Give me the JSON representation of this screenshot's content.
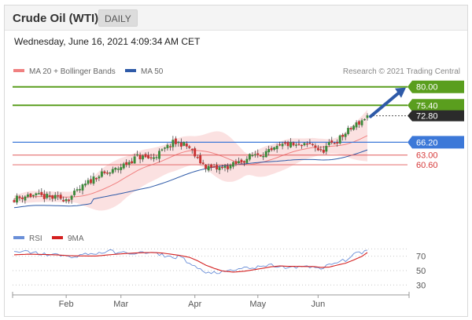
{
  "header": {
    "title": "Crude Oil (WTI)",
    "timeframe_button": "DAILY",
    "timestamp": "Wednesday, June 16, 2021 4:09:34 AM CET"
  },
  "legend": {
    "ma20": "MA 20 + Bollinger Bands",
    "ma50": "MA 50",
    "credit": "Research © 2021 Trading Central"
  },
  "rsi_legend": {
    "rsi": "RSI",
    "ma": "9MA"
  },
  "colors": {
    "bull": "#3a8a3a",
    "bear": "#c83232",
    "ma20": "#f08080",
    "band_fill": "#fadada",
    "ma50": "#2e5aa8",
    "resistance": "#5a9e1e",
    "support": "#e05a5a",
    "pivot": "#3c78d8",
    "current": "#2b2b2b",
    "arrow": "#2e5aa8",
    "rsi": "#6a8fd8",
    "rsi_ma": "#d42020",
    "grid": "#cfcfcf"
  },
  "chart_data": [
    {
      "type": "candlestick",
      "title": "Crude Oil (WTI)",
      "timeframe": "DAILY",
      "x_tick_labels": [
        "Feb",
        "Mar",
        "Apr",
        "May",
        "Jun"
      ],
      "y_range": [
        44.5,
        81.5
      ],
      "grid": false,
      "legend_position": "top-left",
      "levels": [
        {
          "name": "resistance",
          "value": 80.0,
          "label": "80.00",
          "style": "resistance"
        },
        {
          "name": "resistance",
          "value": 75.4,
          "label": "75.40",
          "style": "resistance"
        },
        {
          "name": "last",
          "value": 72.8,
          "label": "72.80",
          "style": "current"
        },
        {
          "name": "pivot",
          "value": 66.2,
          "label": "66.20",
          "style": "pivot"
        },
        {
          "name": "support",
          "value": 63.0,
          "label": "63.00",
          "style": "support"
        },
        {
          "name": "support",
          "value": 60.6,
          "label": "60.60",
          "style": "support"
        }
      ],
      "target_arrow": {
        "from": 72.8,
        "to": 80.0
      },
      "anchors": [
        [
          0,
          52.1
        ],
        [
          5,
          53.0
        ],
        [
          10,
          52.7
        ],
        [
          15,
          52.3
        ],
        [
          20,
          52.2
        ],
        [
          25,
          55.0
        ],
        [
          30,
          57.8
        ],
        [
          35,
          58.6
        ],
        [
          40,
          60.5
        ],
        [
          45,
          62.6
        ],
        [
          50,
          62.2
        ],
        [
          54,
          63.9
        ],
        [
          58,
          66.0
        ],
        [
          61,
          65.9
        ],
        [
          64,
          64.8
        ],
        [
          67,
          61.9
        ],
        [
          70,
          60.2
        ],
        [
          73,
          59.5
        ],
        [
          76,
          59.8
        ],
        [
          80,
          60.5
        ],
        [
          84,
          61.8
        ],
        [
          88,
          63.3
        ],
        [
          91,
          63.5
        ],
        [
          94,
          63.8
        ],
        [
          97,
          65.1
        ],
        [
          100,
          65.7
        ],
        [
          103,
          65.2
        ],
        [
          106,
          65.3
        ],
        [
          109,
          65.8
        ],
        [
          112,
          63.7
        ],
        [
          115,
          65.5
        ],
        [
          118,
          66.6
        ],
        [
          121,
          68.4
        ],
        [
          124,
          70.2
        ],
        [
          127,
          71.6
        ],
        [
          129,
          72.8
        ]
      ],
      "series_styles": {
        "ma20": "MA 20",
        "bands": "Bollinger Bands",
        "ma50": "MA 50"
      }
    },
    {
      "type": "line",
      "title": "RSI",
      "series": [
        {
          "name": "RSI",
          "anchors": [
            [
              0,
              74.7
            ],
            [
              5,
              76.2
            ],
            [
              10,
              72.8
            ],
            [
              15,
              72.1
            ],
            [
              20,
              68.7
            ],
            [
              25,
              72.0
            ],
            [
              30,
              74.0
            ],
            [
              35,
              76.5
            ],
            [
              40,
              74.3
            ],
            [
              45,
              74.6
            ],
            [
              50,
              74.3
            ],
            [
              54,
              71.6
            ],
            [
              58,
              68.1
            ],
            [
              61,
              70.0
            ],
            [
              64,
              59.6
            ],
            [
              67,
              53.4
            ],
            [
              70,
              45.4
            ],
            [
              73,
              48.3
            ],
            [
              76,
              47.3
            ],
            [
              80,
              49.7
            ],
            [
              84,
              54.0
            ],
            [
              88,
              53.8
            ],
            [
              91,
              55.1
            ],
            [
              94,
              57.6
            ],
            [
              97,
              55.3
            ],
            [
              100,
              54.1
            ],
            [
              103,
              53.8
            ],
            [
              106,
              57.3
            ],
            [
              109,
              55.2
            ],
            [
              112,
              50.9
            ],
            [
              115,
              58.4
            ],
            [
              118,
              61.0
            ],
            [
              121,
              64.8
            ],
            [
              124,
              73.0
            ],
            [
              127,
              74.0
            ],
            [
              129,
              78.9
            ]
          ]
        },
        {
          "name": "9MA",
          "anchors": [
            [
              0,
              71.9
            ],
            [
              5,
              72.7
            ],
            [
              10,
              72.4
            ],
            [
              15,
              71.9
            ],
            [
              20,
              70.6
            ],
            [
              25,
              70.3
            ],
            [
              30,
              70.2
            ],
            [
              35,
              72.0
            ],
            [
              40,
              73.5
            ],
            [
              45,
              74.6
            ],
            [
              50,
              75.1
            ],
            [
              54,
              74.4
            ],
            [
              58,
              72.4
            ],
            [
              61,
              70.7
            ],
            [
              64,
              68.4
            ],
            [
              67,
              63.6
            ],
            [
              70,
              57.5
            ],
            [
              73,
              53.2
            ],
            [
              76,
              49.5
            ],
            [
              80,
              47.9
            ],
            [
              84,
              49.1
            ],
            [
              88,
              51.4
            ],
            [
              91,
              53.4
            ],
            [
              94,
              55.3
            ],
            [
              97,
              56.5
            ],
            [
              100,
              55.9
            ],
            [
              103,
              55.8
            ],
            [
              106,
              55.7
            ],
            [
              109,
              55.7
            ],
            [
              112,
              54.5
            ],
            [
              115,
              54.8
            ],
            [
              118,
              57.6
            ],
            [
              121,
              60.2
            ],
            [
              124,
              64.7
            ],
            [
              127,
              69.7
            ],
            [
              129,
              75.0
            ]
          ]
        }
      ],
      "y_tick_labels": [
        "70",
        "50",
        "30"
      ],
      "y_range": [
        22,
        88
      ]
    }
  ]
}
